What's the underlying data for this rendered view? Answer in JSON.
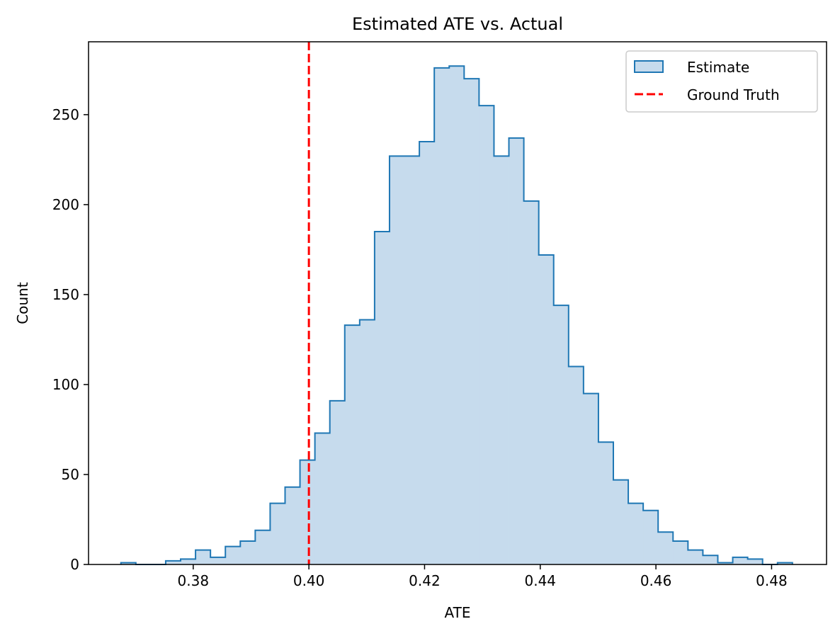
{
  "chart_data": {
    "type": "bar",
    "title": "Estimated ATE vs. Actual",
    "xlabel": "ATE",
    "ylabel": "Count",
    "xlim": [
      0.3619,
      0.4895
    ],
    "ylim": [
      0,
      290.5
    ],
    "xticks": [
      0.38,
      0.4,
      0.42,
      0.44,
      0.46,
      0.48
    ],
    "xtick_labels": [
      "0.38",
      "0.40",
      "0.42",
      "0.44",
      "0.46",
      "0.48"
    ],
    "yticks": [
      0,
      50,
      100,
      150,
      200,
      250
    ],
    "ytick_labels": [
      "0",
      "50",
      "100",
      "150",
      "200",
      "250"
    ],
    "bin_start": 0.3675,
    "bin_width": 0.00258,
    "counts": [
      1,
      0,
      0,
      2,
      3,
      8,
      4,
      10,
      13,
      19,
      34,
      43,
      58,
      73,
      91,
      133,
      136,
      185,
      227,
      227,
      235,
      276,
      277,
      270,
      255,
      227,
      237,
      202,
      172,
      144,
      110,
      95,
      68,
      47,
      34,
      30,
      18,
      13,
      8,
      5,
      1,
      4,
      3,
      0,
      1
    ],
    "series": [
      {
        "name": "Estimate",
        "style": "step-filled",
        "fill": "#c6dbed",
        "edge": "#1f77b4"
      },
      {
        "name": "Ground Truth",
        "style": "dashed-vline",
        "x": 0.4,
        "color": "#ff0000"
      }
    ],
    "legend_placement": "top-right",
    "grid": false
  }
}
